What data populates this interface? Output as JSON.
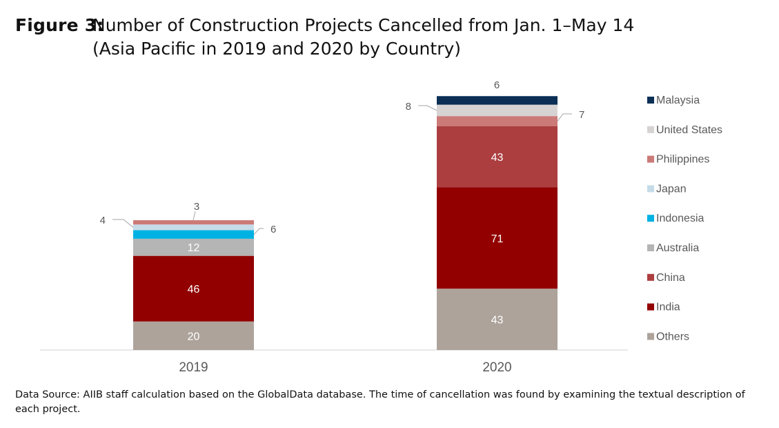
{
  "figure": {
    "label": "Figure 3:",
    "title_line1": "Number of Construction Projects Cancelled from Jan. 1–May 14",
    "title_line2": "(Asia Pacific in 2019 and 2020 by Country)"
  },
  "source_note": "Data Source: AIIB staff calculation based on the GlobalData database. The time of cancellation was found by examining the textual description of each project.",
  "chart_data": {
    "type": "bar",
    "stacked": true,
    "categories": [
      "2019",
      "2020"
    ],
    "series": [
      {
        "name": "Others",
        "color": "#ada39b",
        "values": [
          20,
          43
        ]
      },
      {
        "name": "India",
        "color": "#920000",
        "values": [
          46,
          71
        ]
      },
      {
        "name": "China",
        "color": "#ac3e40",
        "values": [
          0,
          43
        ]
      },
      {
        "name": "Australia",
        "color": "#b5b5b5",
        "values": [
          12,
          0
        ]
      },
      {
        "name": "Indonesia",
        "color": "#00b2e3",
        "values": [
          6,
          0
        ]
      },
      {
        "name": "Japan",
        "color": "#c5dbe8",
        "values": [
          4,
          0
        ]
      },
      {
        "name": "Philippines",
        "color": "#cc7a78",
        "values": [
          3,
          7
        ]
      },
      {
        "name": "United States",
        "color": "#d6d3d2",
        "values": [
          0,
          8
        ]
      },
      {
        "name": "Malaysia",
        "color": "#0b2f55",
        "values": [
          0,
          6
        ]
      }
    ],
    "data_labels": [
      {
        "category": "2019",
        "series": "Others",
        "text": "20"
      },
      {
        "category": "2019",
        "series": "India",
        "text": "46"
      },
      {
        "category": "2019",
        "series": "Australia",
        "text": "12"
      },
      {
        "category": "2019",
        "series": "Indonesia",
        "text": "6"
      },
      {
        "category": "2019",
        "series": "Japan",
        "text": "4"
      },
      {
        "category": "2019",
        "series": "Philippines",
        "text": "3"
      },
      {
        "category": "2020",
        "series": "Others",
        "text": "43"
      },
      {
        "category": "2020",
        "series": "India",
        "text": "71"
      },
      {
        "category": "2020",
        "series": "China",
        "text": "43"
      },
      {
        "category": "2020",
        "series": "Philippines",
        "text": "7"
      },
      {
        "category": "2020",
        "series": "United States",
        "text": "8"
      },
      {
        "category": "2020",
        "series": "Malaysia",
        "text": "6"
      }
    ],
    "legend_position": "right",
    "legend_order": [
      "Malaysia",
      "United States",
      "Philippines",
      "Japan",
      "Indonesia",
      "Australia",
      "China",
      "India",
      "Others"
    ],
    "grid": false,
    "y_axis_visible": false
  }
}
